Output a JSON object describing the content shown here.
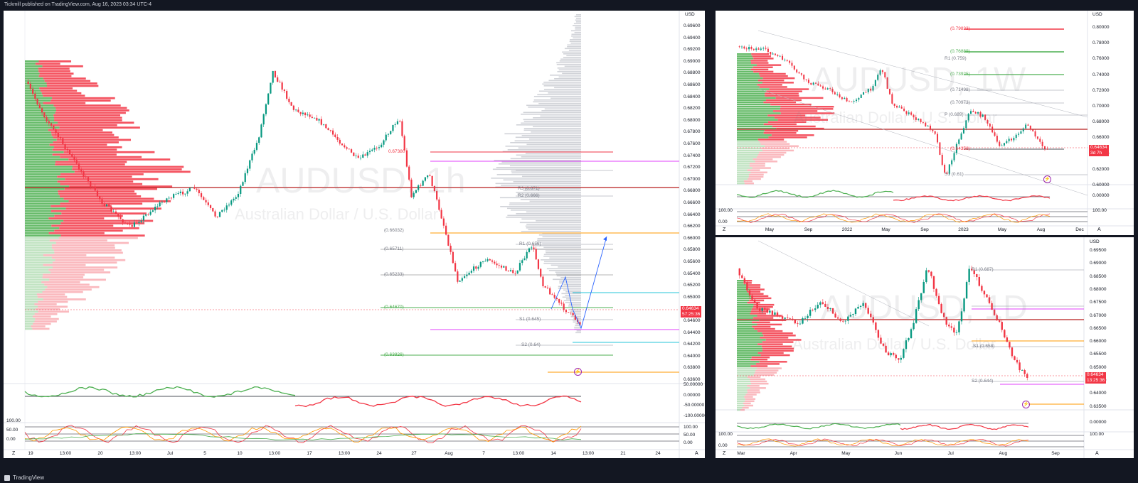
{
  "header": {
    "publish_info": "Tickmill published on TradingView.com, Aug 16, 2023 03:34 UTC-4"
  },
  "footer": {
    "brand": "TradingView"
  },
  "colors": {
    "bull": "#089981",
    "bear": "#f23645",
    "dark": "#131722",
    "ema": "#ff9800",
    "pivot_magenta": "#e040fb"
  },
  "main_chart": {
    "symbol_watermark": "AUDUSD, 1h",
    "description_watermark": "Australian Dollar / U.S. Dollar",
    "currency": "USD",
    "price_axis": [
      "0.69600",
      "0.69400",
      "0.69200",
      "0.69000",
      "0.68800",
      "0.68600",
      "0.68400",
      "0.68200",
      "0.68000",
      "0.67800",
      "0.67600",
      "0.67400",
      "0.67200",
      "0.67000",
      "0.66800",
      "0.66600",
      "0.66400",
      "0.66200",
      "0.66000",
      "0.65800",
      "0.65600",
      "0.65400",
      "0.65200",
      "0.65000",
      "0.64800",
      "0.64600",
      "0.64400",
      "0.64200",
      "0.64000",
      "0.63800",
      "0.63600"
    ],
    "osc1_axis": [
      "50.00000",
      "0.00000",
      "-50.00000",
      "-100.00000"
    ],
    "osc2_axis": [
      "100.00",
      "50.00",
      "0.00"
    ],
    "osc2_left": [
      "100.00",
      "50.00",
      "0.00"
    ],
    "time_axis": [
      "19",
      "13:00",
      "20",
      "13:00",
      "Jul",
      "5",
      "10",
      "13:00",
      "17",
      "13:00",
      "24",
      "27",
      "Aug",
      "7",
      "13:00",
      "14",
      "13:00",
      "21",
      "24"
    ],
    "current_price": "0.64634",
    "countdown": "57:25:36",
    "levels": {
      "r3": "R3 (0.671)",
      "r2": "R2 (0.666)",
      "r1": "R1 (0.656)",
      "s1": "S1 (0.645)",
      "s2": "S2 (0.64)",
      "fib_top": "0.67380",
      "fib1": "(0.66032)",
      "fib2": "(0.65711)",
      "fib3": "(0.65233)",
      "fib4": "(0.64670)",
      "fib5": "(0.63826)"
    },
    "buttons": {
      "z": "Z",
      "a": "A"
    }
  },
  "weekly_chart": {
    "symbol_watermark": "AUDUSD, 1W",
    "description_watermark": "Australian Dollar / U.S. Dollar",
    "currency": "USD",
    "price_axis": [
      "0.80000",
      "0.78000",
      "0.76000",
      "0.74000",
      "0.72000",
      "0.70000",
      "0.68000",
      "0.66000",
      "0.64000",
      "0.62000",
      "0.60000"
    ],
    "osc1_axis": [
      "0.00000"
    ],
    "osc2_axis": [
      "100.00"
    ],
    "osc2_left": [
      "100.00",
      "0.00"
    ],
    "time_axis": [
      "May",
      "Sep",
      "2022",
      "May",
      "Sep",
      "2023",
      "May",
      "Aug",
      "Dec"
    ],
    "current_price": "0.64634",
    "countdown": "3d 7h",
    "levels": {
      "l1": "(0.79833)",
      "l2": "(0.76889)",
      "r1": "R1 (0.759)",
      "l3": "(0.73925)",
      "l4": "(0.71498)",
      "l5": "(0.70973)",
      "p": "P (0.689)",
      "l6": "(0.64356)",
      "s1": "S1 (0.61)"
    },
    "buttons": {
      "z": "Z",
      "a": "A"
    }
  },
  "daily_chart": {
    "symbol_watermark": "AUDUSD, 1D",
    "description_watermark": "Australian Dollar / U.S. Dollar",
    "currency": "USD",
    "price_axis": [
      "0.69500",
      "0.69000",
      "0.68500",
      "0.68000",
      "0.67500",
      "0.67000",
      "0.66500",
      "0.66000",
      "0.65500",
      "0.65000",
      "0.64500",
      "0.64000",
      "0.63500"
    ],
    "osc1_axis": [
      "0.00000"
    ],
    "osc2_axis": [
      "100.00"
    ],
    "osc2_left": [
      "100.00",
      "0.00"
    ],
    "time_axis": [
      "Mar",
      "Apr",
      "May",
      "Jun",
      "Jul",
      "Aug",
      "Sep"
    ],
    "current_price": "0.64634",
    "countdown": "13:25:36",
    "levels": {
      "r1": "R1 (0.687)",
      "s1": "S1 (0.658)",
      "s2": "S2 (0.644)"
    },
    "buttons": {
      "z": "Z",
      "a": "A"
    }
  }
}
